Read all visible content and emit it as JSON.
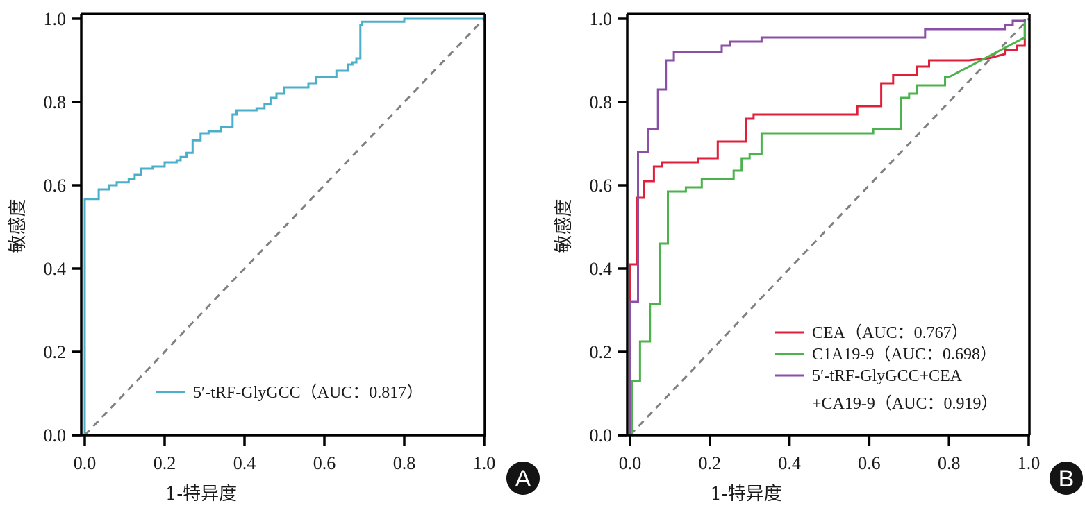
{
  "chart_data": [
    {
      "type": "line",
      "panel_label": "A",
      "title": "",
      "xlabel": "1-特异度",
      "ylabel": "敏感度",
      "xlim": [
        0,
        1
      ],
      "ylim": [
        0,
        1
      ],
      "xticks": [
        "0.0",
        "0.2",
        "0.4",
        "0.6",
        "0.8",
        "1.0"
      ],
      "yticks": [
        "0.0",
        "0.2",
        "0.4",
        "0.6",
        "0.8",
        "1.0"
      ],
      "grid": false,
      "legend_position": "bottom-center",
      "reference_line": {
        "name": "diagonal",
        "style": "dashed",
        "color": "#808080",
        "points": [
          [
            0,
            0
          ],
          [
            1,
            1
          ]
        ]
      },
      "series": [
        {
          "name": "5′-tRF-GlyGCC（AUC：0.817）",
          "color": "#4bafc9",
          "auc": 0.817,
          "points": [
            [
              0,
              0
            ],
            [
              0,
              0.567
            ],
            [
              0.035,
              0.567
            ],
            [
              0.035,
              0.59
            ],
            [
              0.06,
              0.59
            ],
            [
              0.06,
              0.6
            ],
            [
              0.08,
              0.6
            ],
            [
              0.08,
              0.607
            ],
            [
              0.11,
              0.607
            ],
            [
              0.11,
              0.615
            ],
            [
              0.125,
              0.615
            ],
            [
              0.125,
              0.625
            ],
            [
              0.14,
              0.625
            ],
            [
              0.14,
              0.64
            ],
            [
              0.17,
              0.64
            ],
            [
              0.17,
              0.645
            ],
            [
              0.2,
              0.645
            ],
            [
              0.2,
              0.655
            ],
            [
              0.23,
              0.655
            ],
            [
              0.23,
              0.66
            ],
            [
              0.24,
              0.66
            ],
            [
              0.24,
              0.668
            ],
            [
              0.255,
              0.668
            ],
            [
              0.255,
              0.678
            ],
            [
              0.27,
              0.678
            ],
            [
              0.27,
              0.708
            ],
            [
              0.29,
              0.708
            ],
            [
              0.29,
              0.725
            ],
            [
              0.31,
              0.725
            ],
            [
              0.31,
              0.73
            ],
            [
              0.34,
              0.73
            ],
            [
              0.34,
              0.74
            ],
            [
              0.37,
              0.74
            ],
            [
              0.37,
              0.77
            ],
            [
              0.38,
              0.77
            ],
            [
              0.38,
              0.78
            ],
            [
              0.43,
              0.78
            ],
            [
              0.43,
              0.785
            ],
            [
              0.45,
              0.785
            ],
            [
              0.45,
              0.795
            ],
            [
              0.465,
              0.795
            ],
            [
              0.465,
              0.81
            ],
            [
              0.48,
              0.81
            ],
            [
              0.48,
              0.82
            ],
            [
              0.5,
              0.82
            ],
            [
              0.5,
              0.835
            ],
            [
              0.56,
              0.835
            ],
            [
              0.56,
              0.845
            ],
            [
              0.58,
              0.845
            ],
            [
              0.58,
              0.86
            ],
            [
              0.63,
              0.86
            ],
            [
              0.63,
              0.875
            ],
            [
              0.66,
              0.875
            ],
            [
              0.66,
              0.89
            ],
            [
              0.67,
              0.89
            ],
            [
              0.67,
              0.895
            ],
            [
              0.68,
              0.895
            ],
            [
              0.68,
              0.905
            ],
            [
              0.69,
              0.905
            ],
            [
              0.69,
              0.985
            ],
            [
              0.695,
              0.985
            ],
            [
              0.695,
              0.993
            ],
            [
              0.8,
              0.993
            ],
            [
              0.8,
              1.0
            ],
            [
              1.0,
              1.0
            ]
          ]
        }
      ]
    },
    {
      "type": "line",
      "panel_label": "B",
      "title": "",
      "xlabel": "1-特异度",
      "ylabel": "敏感度",
      "xlim": [
        0,
        1
      ],
      "ylim": [
        0,
        1
      ],
      "xticks": [
        "0.0",
        "0.2",
        "0.4",
        "0.6",
        "0.8",
        "1.0"
      ],
      "yticks": [
        "0.0",
        "0.2",
        "0.4",
        "0.6",
        "0.8",
        "1.0"
      ],
      "grid": false,
      "legend_position": "bottom-right",
      "reference_line": {
        "name": "diagonal",
        "style": "dashed",
        "color": "#808080",
        "points": [
          [
            0,
            0
          ],
          [
            1,
            1
          ]
        ]
      },
      "series": [
        {
          "name": "CEA（AUC：0.767）",
          "color": "#e0203a",
          "auc": 0.767,
          "points": [
            [
              0,
              0
            ],
            [
              0,
              0.41
            ],
            [
              0.018,
              0.41
            ],
            [
              0.018,
              0.57
            ],
            [
              0.035,
              0.57
            ],
            [
              0.035,
              0.61
            ],
            [
              0.06,
              0.61
            ],
            [
              0.06,
              0.645
            ],
            [
              0.08,
              0.645
            ],
            [
              0.08,
              0.655
            ],
            [
              0.17,
              0.655
            ],
            [
              0.17,
              0.665
            ],
            [
              0.22,
              0.665
            ],
            [
              0.22,
              0.705
            ],
            [
              0.29,
              0.705
            ],
            [
              0.29,
              0.76
            ],
            [
              0.31,
              0.76
            ],
            [
              0.31,
              0.77
            ],
            [
              0.57,
              0.77
            ],
            [
              0.57,
              0.79
            ],
            [
              0.63,
              0.79
            ],
            [
              0.63,
              0.845
            ],
            [
              0.66,
              0.845
            ],
            [
              0.66,
              0.865
            ],
            [
              0.72,
              0.865
            ],
            [
              0.72,
              0.885
            ],
            [
              0.75,
              0.885
            ],
            [
              0.75,
              0.9
            ],
            [
              0.85,
              0.9
            ],
            [
              0.9,
              0.905
            ],
            [
              0.94,
              0.915
            ],
            [
              0.94,
              0.925
            ],
            [
              0.97,
              0.925
            ],
            [
              0.97,
              0.935
            ],
            [
              0.99,
              0.935
            ],
            [
              0.99,
              1.0
            ]
          ]
        },
        {
          "name": "C1A19-9（AUC：0.698）",
          "color": "#4cb34c",
          "auc": 0.698,
          "points": [
            [
              0,
              0
            ],
            [
              0.005,
              0
            ],
            [
              0.005,
              0.13
            ],
            [
              0.025,
              0.13
            ],
            [
              0.025,
              0.225
            ],
            [
              0.05,
              0.225
            ],
            [
              0.05,
              0.315
            ],
            [
              0.075,
              0.315
            ],
            [
              0.075,
              0.46
            ],
            [
              0.095,
              0.46
            ],
            [
              0.095,
              0.585
            ],
            [
              0.14,
              0.585
            ],
            [
              0.14,
              0.595
            ],
            [
              0.18,
              0.595
            ],
            [
              0.18,
              0.615
            ],
            [
              0.26,
              0.615
            ],
            [
              0.26,
              0.635
            ],
            [
              0.28,
              0.635
            ],
            [
              0.28,
              0.665
            ],
            [
              0.3,
              0.665
            ],
            [
              0.3,
              0.675
            ],
            [
              0.33,
              0.675
            ],
            [
              0.33,
              0.725
            ],
            [
              0.61,
              0.725
            ],
            [
              0.61,
              0.735
            ],
            [
              0.68,
              0.735
            ],
            [
              0.68,
              0.81
            ],
            [
              0.7,
              0.81
            ],
            [
              0.7,
              0.82
            ],
            [
              0.72,
              0.82
            ],
            [
              0.72,
              0.84
            ],
            [
              0.79,
              0.84
            ],
            [
              0.79,
              0.86
            ],
            [
              0.8,
              0.86
            ],
            [
              0.99,
              0.955
            ],
            [
              0.99,
              1.0
            ]
          ]
        },
        {
          "name": "5′-tRF-GlyGCC+CEA +CA19-9（AUC：0.919）",
          "legend_lines": [
            "5′-tRF-GlyGCC+CEA",
            "+CA19-9（AUC：0.919）"
          ],
          "color": "#8a4fa6",
          "auc": 0.919,
          "points": [
            [
              0,
              0
            ],
            [
              0,
              0.32
            ],
            [
              0.02,
              0.32
            ],
            [
              0.02,
              0.68
            ],
            [
              0.045,
              0.68
            ],
            [
              0.045,
              0.735
            ],
            [
              0.07,
              0.735
            ],
            [
              0.07,
              0.83
            ],
            [
              0.09,
              0.83
            ],
            [
              0.09,
              0.9
            ],
            [
              0.11,
              0.9
            ],
            [
              0.11,
              0.92
            ],
            [
              0.23,
              0.92
            ],
            [
              0.23,
              0.935
            ],
            [
              0.25,
              0.935
            ],
            [
              0.25,
              0.945
            ],
            [
              0.33,
              0.945
            ],
            [
              0.33,
              0.955
            ],
            [
              0.74,
              0.955
            ],
            [
              0.74,
              0.975
            ],
            [
              0.94,
              0.975
            ],
            [
              0.94,
              0.985
            ],
            [
              0.96,
              0.985
            ],
            [
              0.96,
              0.995
            ],
            [
              0.99,
              0.995
            ],
            [
              0.99,
              1.0
            ]
          ]
        }
      ]
    }
  ]
}
